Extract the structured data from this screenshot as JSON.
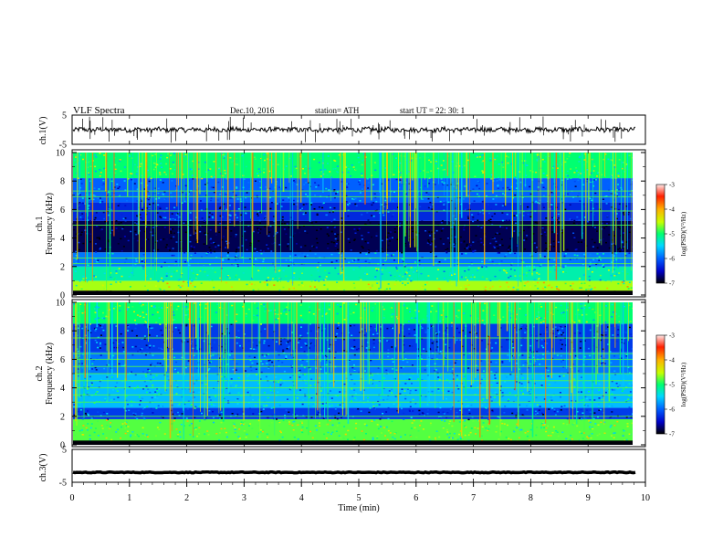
{
  "header": {
    "title": "VLF  Spectra",
    "date": "Dec.10, 2016",
    "station": "station= ATH",
    "start": "start  UT  =   22: 30: 1"
  },
  "colors": {
    "spectrogram_scale": [
      "#00003c",
      "#0000c8",
      "#0060ff",
      "#00d8ff",
      "#00ff70",
      "#c8ff00",
      "#ffb000",
      "#ff2000",
      "#ffe0e0"
    ]
  },
  "chart_data": [
    {
      "id": "ch1-waveform",
      "type": "line",
      "ylabel": "ch.1(V)",
      "ylim": [
        -5,
        5
      ],
      "yticks": [
        "5",
        "-5"
      ],
      "baseline_volts": 0,
      "description_of_trace": "noisy waveform near 0 V with sferic spikes"
    },
    {
      "id": "ch1-spectrogram",
      "type": "heatmap",
      "ylabel_line1": "ch.1",
      "ylabel_line2": "Frequency  (kHz)",
      "ylim": [
        0,
        10
      ],
      "yticks": [
        "0",
        "2",
        "4",
        "6",
        "8",
        "10"
      ],
      "colorbar": {
        "label": "log(PSD)(V²/Hz)",
        "range": [
          -7,
          -3
        ],
        "ticks": [
          "-3",
          "-4",
          "-5",
          "-6",
          "-7"
        ]
      },
      "bands": [
        {
          "from_khz": 0.0,
          "to_khz": 0.3,
          "level": -7.0
        },
        {
          "from_khz": 0.3,
          "to_khz": 1.0,
          "level": -4.6
        },
        {
          "from_khz": 1.0,
          "to_khz": 2.0,
          "level": -5.2
        },
        {
          "from_khz": 2.0,
          "to_khz": 3.0,
          "level": -5.9
        },
        {
          "from_khz": 3.0,
          "to_khz": 5.2,
          "level": -6.8
        },
        {
          "from_khz": 5.2,
          "to_khz": 6.5,
          "level": -6.3
        },
        {
          "from_khz": 6.5,
          "to_khz": 8.2,
          "level": -6.0
        },
        {
          "from_khz": 8.2,
          "to_khz": 10.0,
          "level": -5.0
        }
      ],
      "tone_lines_khz": [
        2.2,
        2.6,
        4.9,
        5.9,
        6.9,
        7.3
      ]
    },
    {
      "id": "ch2-spectrogram",
      "type": "heatmap",
      "ylabel_line1": "ch.2",
      "ylabel_line2": "Frequency  (kHz)",
      "ylim": [
        0,
        10
      ],
      "yticks": [
        "0",
        "2",
        "4",
        "6",
        "8",
        "10"
      ],
      "colorbar": {
        "label": "log(PSD)(V²/Hz)",
        "range": [
          -7,
          -3
        ],
        "ticks": [
          "-3",
          "-4",
          "-5",
          "-6",
          "-7"
        ]
      },
      "bands": [
        {
          "from_khz": 0.0,
          "to_khz": 0.2,
          "level": -6.8
        },
        {
          "from_khz": 0.2,
          "to_khz": 1.8,
          "level": -4.8
        },
        {
          "from_khz": 1.8,
          "to_khz": 2.6,
          "level": -6.2
        },
        {
          "from_khz": 2.6,
          "to_khz": 5.0,
          "level": -5.6
        },
        {
          "from_khz": 5.0,
          "to_khz": 6.5,
          "level": -5.9
        },
        {
          "from_khz": 6.5,
          "to_khz": 8.5,
          "level": -6.2
        },
        {
          "from_khz": 8.5,
          "to_khz": 10.0,
          "level": -5.0
        }
      ],
      "tone_lines_khz": [
        2.0,
        3.0,
        3.5,
        4.0,
        4.5,
        5.0,
        5.5,
        6.0,
        6.4,
        7.5
      ]
    },
    {
      "id": "ch3-waveform",
      "type": "line",
      "ylabel": "ch.3(V)",
      "ylim": [
        -5,
        5
      ],
      "yticks": [
        "5",
        "-5"
      ],
      "baseline_volts": -2,
      "description_of_trace": "nearly flat thick trace"
    }
  ],
  "xaxis": {
    "label": "Time  (min)",
    "xlim": [
      0,
      10
    ],
    "ticks": [
      "0",
      "1",
      "2",
      "3",
      "4",
      "5",
      "6",
      "7",
      "8",
      "9",
      "10"
    ],
    "data_end_min": 9.83
  }
}
